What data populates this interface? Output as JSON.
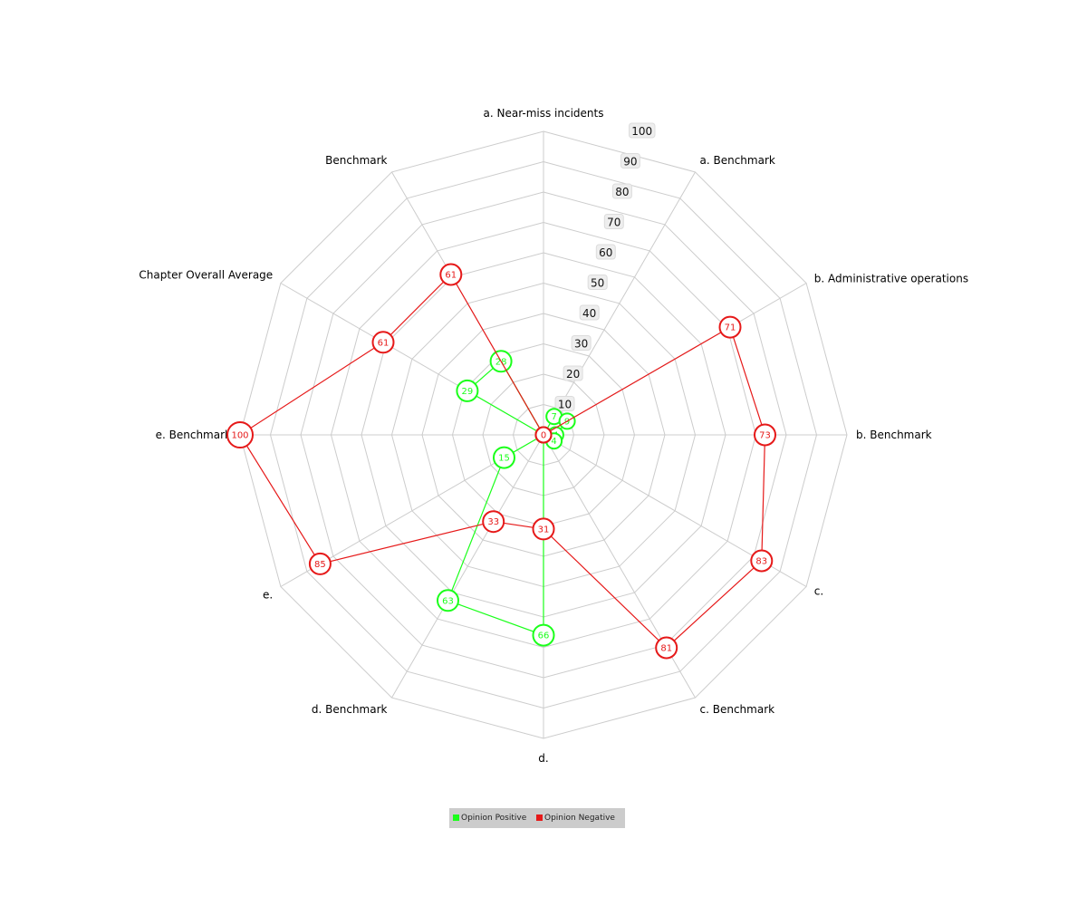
{
  "chart_data": {
    "type": "radar",
    "axes": [
      "a. Near-miss incidents",
      "a. Benchmark",
      "b. Administrative operations",
      "b. Benchmark",
      "c.",
      "c. Benchmark",
      "d.",
      "d. Benchmark",
      "e.",
      "e. Benchmark",
      "Chapter Overall Average",
      "Benchmark"
    ],
    "ticks": [
      10,
      20,
      30,
      40,
      50,
      60,
      70,
      80,
      90,
      100
    ],
    "range": [
      0,
      100
    ],
    "series": [
      {
        "name": "Opinion Positive",
        "color": "#1aff1a",
        "values": [
          0,
          7,
          9,
          4,
          4,
          0,
          66,
          63,
          15,
          0,
          29,
          28
        ]
      },
      {
        "name": "Opinion Negative",
        "color": "#e61919",
        "values": [
          0,
          0,
          71,
          73,
          83,
          81,
          31,
          33,
          85,
          100,
          61,
          61
        ]
      }
    ],
    "legend_position": "bottom-center",
    "grid": true
  }
}
